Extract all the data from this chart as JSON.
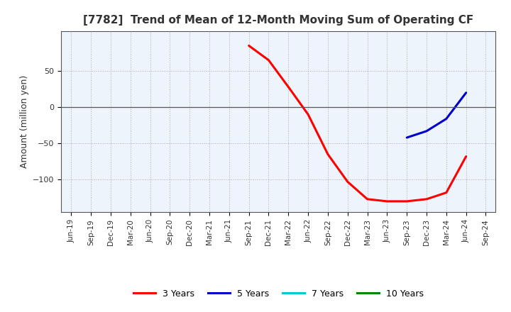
{
  "title": "[7782]  Trend of Mean of 12-Month Moving Sum of Operating CF",
  "ylabel": "Amount (million yen)",
  "background_color": "#ffffff",
  "plot_bg_color": "#eef4fb",
  "grid_color": "#9999aa",
  "ylim": [
    -145,
    105
  ],
  "yticks": [
    -100,
    -50,
    0,
    50
  ],
  "series": {
    "3years": {
      "color": "#ff0000",
      "data": [
        [
          "Sep-21",
          85
        ],
        [
          "Dec-21",
          65
        ],
        [
          "Mar-22",
          28
        ],
        [
          "Jun-22",
          -10
        ],
        [
          "Sep-22",
          -65
        ],
        [
          "Dec-22",
          -103
        ],
        [
          "Mar-23",
          -127
        ],
        [
          "Jun-23",
          -130
        ],
        [
          "Sep-23",
          -130
        ],
        [
          "Dec-23",
          -127
        ],
        [
          "Mar-24",
          -118
        ],
        [
          "Jun-24",
          -68
        ]
      ]
    },
    "5years": {
      "color": "#0000cc",
      "data": [
        [
          "Sep-23",
          -42
        ],
        [
          "Dec-23",
          -33
        ],
        [
          "Mar-24",
          -16
        ],
        [
          "Jun-24",
          20
        ]
      ]
    },
    "7years": {
      "color": "#00cccc",
      "data": []
    },
    "10years": {
      "color": "#008800",
      "data": []
    }
  },
  "x_labels": [
    "Jun-19",
    "Sep-19",
    "Dec-19",
    "Mar-20",
    "Jun-20",
    "Sep-20",
    "Dec-20",
    "Mar-21",
    "Jun-21",
    "Sep-21",
    "Dec-21",
    "Mar-22",
    "Jun-22",
    "Sep-22",
    "Dec-22",
    "Mar-23",
    "Jun-23",
    "Sep-23",
    "Dec-23",
    "Mar-24",
    "Jun-24",
    "Sep-24"
  ],
  "legend_entries": [
    {
      "label": "3 Years",
      "color": "#ff0000"
    },
    {
      "label": "5 Years",
      "color": "#0000cc"
    },
    {
      "label": "7 Years",
      "color": "#00cccc"
    },
    {
      "label": "10 Years",
      "color": "#008800"
    }
  ],
  "title_color": "#333333",
  "tick_color": "#333333"
}
